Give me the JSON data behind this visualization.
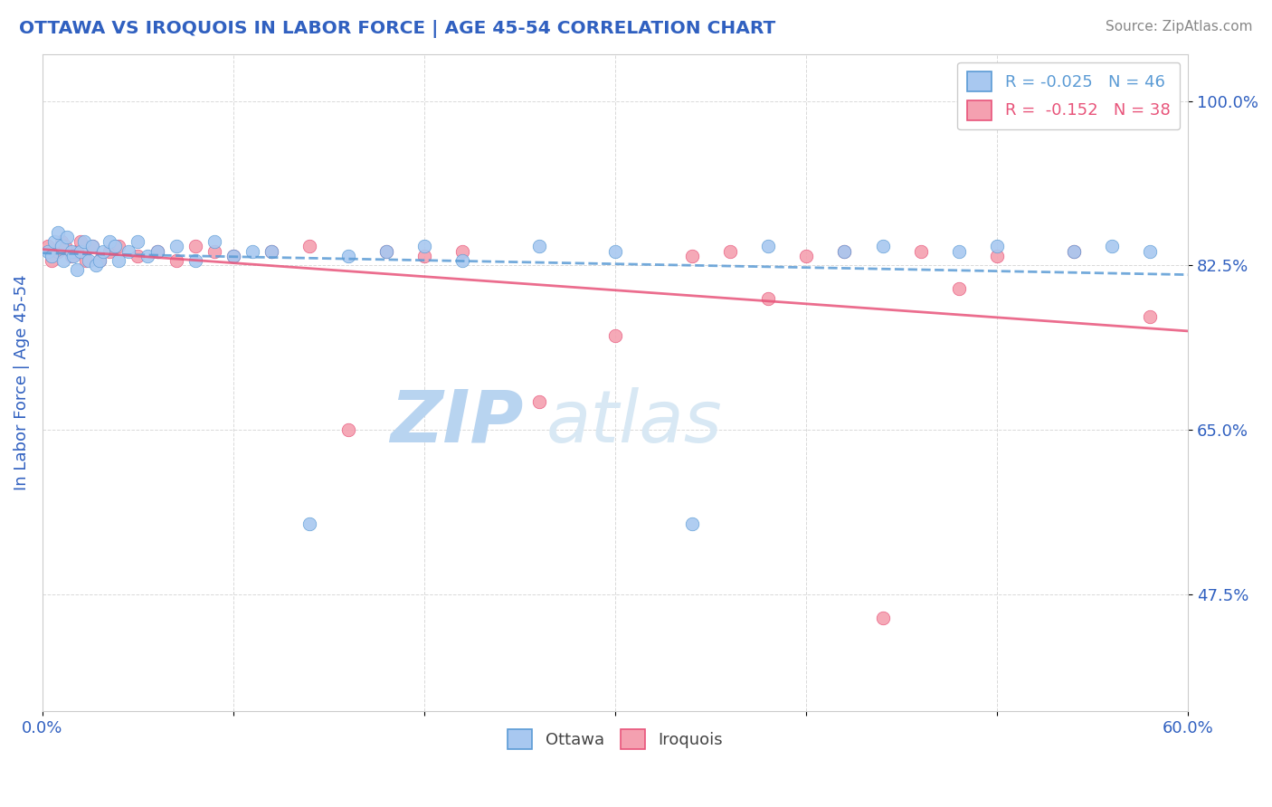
{
  "title": "OTTAWA VS IROQUOIS IN LABOR FORCE | AGE 45-54 CORRELATION CHART",
  "source_text": "Source: ZipAtlas.com",
  "xlabel": "",
  "ylabel": "In Labor Force | Age 45-54",
  "xlim": [
    0.0,
    60.0
  ],
  "ylim": [
    35.0,
    105.0
  ],
  "yticks": [
    47.5,
    65.0,
    82.5,
    100.0
  ],
  "yticklabels": [
    "47.5%",
    "65.0%",
    "82.5%",
    "100.0%"
  ],
  "xticks": [
    0.0,
    10.0,
    20.0,
    30.0,
    40.0,
    50.0,
    60.0
  ],
  "xticklabels": [
    "0.0%",
    "",
    "",
    "",
    "",
    "",
    "60.0%"
  ],
  "ottawa_color": "#a8c8f0",
  "iroquois_color": "#f4a0b0",
  "ottawa_line_color": "#5b9bd5",
  "iroquois_line_color": "#e8547a",
  "background_color": "#ffffff",
  "grid_color": "#d0d0d0",
  "title_color": "#3060c0",
  "axis_label_color": "#3060c0",
  "tick_color": "#3060c0",
  "watermark_color": "#ddeeff",
  "ottawa_x": [
    0.3,
    0.5,
    0.6,
    0.8,
    1.0,
    1.1,
    1.3,
    1.5,
    1.6,
    1.8,
    2.0,
    2.2,
    2.4,
    2.6,
    2.8,
    3.0,
    3.2,
    3.5,
    3.8,
    4.0,
    4.5,
    5.0,
    5.5,
    6.0,
    7.0,
    8.0,
    9.0,
    10.0,
    11.0,
    12.0,
    14.0,
    16.0,
    18.0,
    20.0,
    22.0,
    26.0,
    30.0,
    34.0,
    38.0,
    42.0,
    44.0,
    48.0,
    50.0,
    54.0,
    56.0,
    58.0
  ],
  "ottawa_y": [
    84.0,
    83.5,
    85.0,
    86.0,
    84.5,
    83.0,
    85.5,
    84.0,
    83.5,
    82.0,
    84.0,
    85.0,
    83.0,
    84.5,
    82.5,
    83.0,
    84.0,
    85.0,
    84.5,
    83.0,
    84.0,
    85.0,
    83.5,
    84.0,
    84.5,
    83.0,
    85.0,
    83.5,
    84.0,
    84.0,
    55.0,
    83.5,
    84.0,
    84.5,
    83.0,
    84.5,
    84.0,
    55.0,
    84.5,
    84.0,
    84.5,
    84.0,
    84.5,
    84.0,
    84.5,
    84.0
  ],
  "iroquois_x": [
    0.3,
    0.5,
    0.8,
    1.0,
    1.2,
    1.5,
    1.8,
    2.0,
    2.3,
    2.6,
    3.0,
    3.5,
    4.0,
    5.0,
    6.0,
    7.0,
    8.0,
    9.0,
    10.0,
    12.0,
    14.0,
    16.0,
    18.0,
    20.0,
    22.0,
    26.0,
    30.0,
    34.0,
    36.0,
    38.0,
    40.0,
    42.0,
    44.0,
    46.0,
    48.0,
    50.0,
    54.0,
    58.0
  ],
  "iroquois_y": [
    84.5,
    83.0,
    84.0,
    85.0,
    84.5,
    83.5,
    84.0,
    85.0,
    83.0,
    84.5,
    83.0,
    84.0,
    84.5,
    83.5,
    84.0,
    83.0,
    84.5,
    84.0,
    83.5,
    84.0,
    84.5,
    65.0,
    84.0,
    83.5,
    84.0,
    68.0,
    75.0,
    83.5,
    84.0,
    79.0,
    83.5,
    84.0,
    45.0,
    84.0,
    80.0,
    83.5,
    84.0,
    77.0
  ],
  "legend_ottawa_label": "R = -0.025   N = 46",
  "legend_iroquois_label": "R =  -0.152   N = 38",
  "bottom_legend_ottawa": "Ottawa",
  "bottom_legend_iroquois": "Iroquois",
  "ottawa_trend_x0": 0.0,
  "ottawa_trend_y0": 83.8,
  "ottawa_trend_x1": 60.0,
  "ottawa_trend_y1": 81.5,
  "iroquois_trend_x0": 0.0,
  "iroquois_trend_y0": 84.2,
  "iroquois_trend_x1": 60.0,
  "iroquois_trend_y1": 75.5
}
